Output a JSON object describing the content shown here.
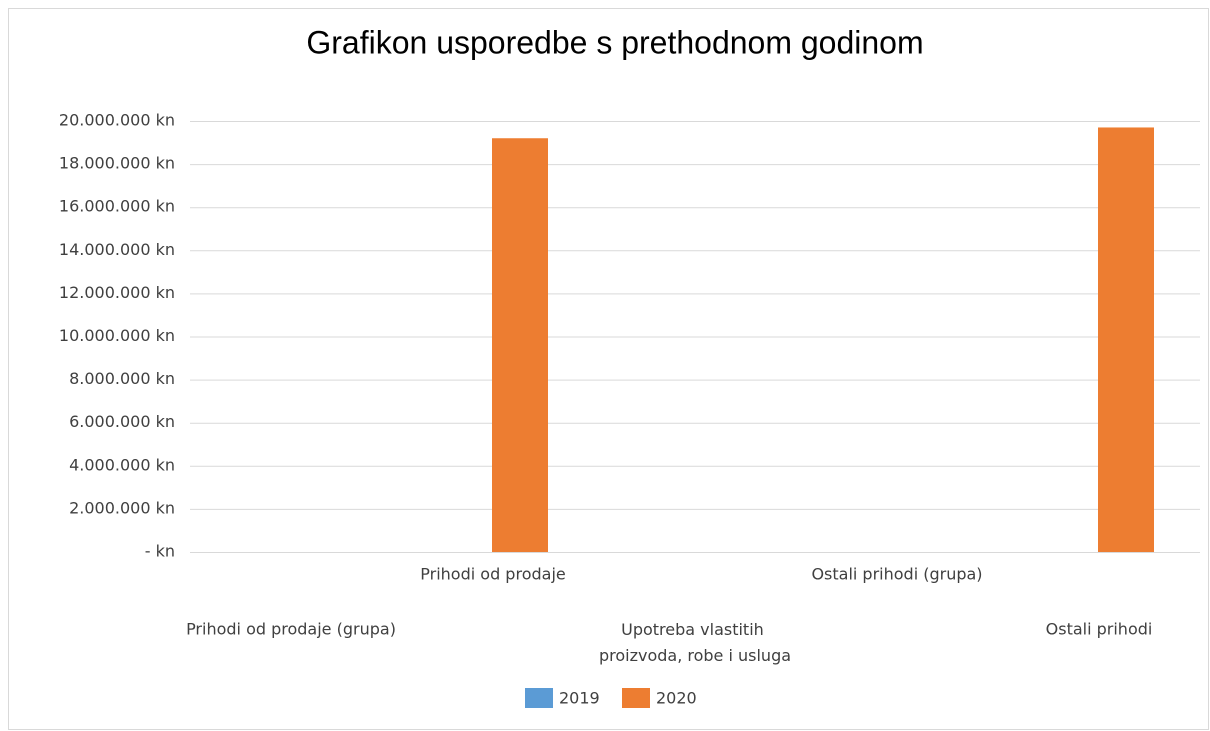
{
  "chart_data": {
    "type": "bar",
    "title": "Grafikon usporedbe s prethodnom godinom",
    "categories": [
      "Prihodi od prodaje (grupa)",
      "Prihodi od prodaje",
      "Upotreba vlastitih proizvoda, robe i usluga",
      "Ostali prihodi (grupa)",
      "Ostali prihodi"
    ],
    "series": [
      {
        "name": "2019",
        "color": "#5b9bd5",
        "values": [
          0,
          0,
          0,
          0,
          0
        ]
      },
      {
        "name": "2020",
        "color": "#ed7d31",
        "values": [
          0,
          19200000,
          0,
          0,
          19700000
        ]
      }
    ],
    "ylim": [
      0,
      20000000
    ],
    "yticks": [
      {
        "value": 0,
        "label": "- kn"
      },
      {
        "value": 2000000,
        "label": "2.000.000 kn"
      },
      {
        "value": 4000000,
        "label": "4.000.000 kn"
      },
      {
        "value": 6000000,
        "label": "6.000.000 kn"
      },
      {
        "value": 8000000,
        "label": "8.000.000 kn"
      },
      {
        "value": 10000000,
        "label": "10.000.000 kn"
      },
      {
        "value": 12000000,
        "label": "12.000.000 kn"
      },
      {
        "value": 14000000,
        "label": "14.000.000 kn"
      },
      {
        "value": 16000000,
        "label": "16.000.000 kn"
      },
      {
        "value": 18000000,
        "label": "18.000.000 kn"
      },
      {
        "value": 20000000,
        "label": "20.000.000 kn"
      }
    ],
    "grid": true,
    "legend": "bottom"
  }
}
